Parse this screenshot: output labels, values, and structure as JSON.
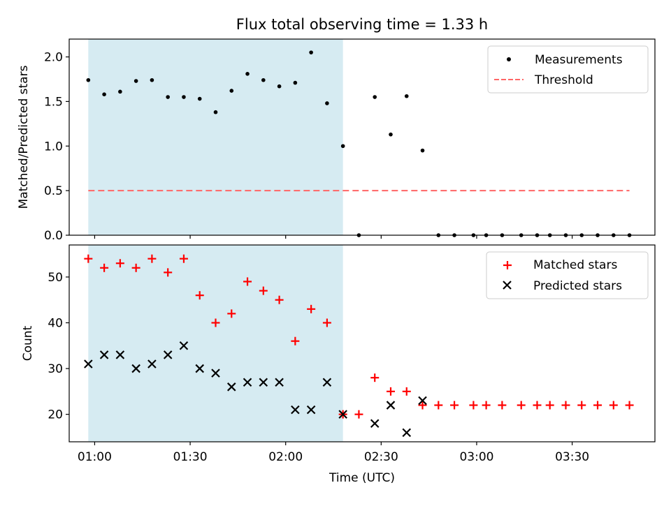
{
  "chart_data": [
    {
      "type": "scatter",
      "title": "Flux total observing time = 1.33 h",
      "ylabel": "Matched/Predicted stars",
      "xlabel": "",
      "xlim": [
        "00:52",
        "03:56"
      ],
      "ylim": [
        0,
        2.2
      ],
      "yticks": [
        "0.0",
        "0.5",
        "1.0",
        "1.5",
        "2.0"
      ],
      "shaded_interval": [
        "00:58",
        "02:18"
      ],
      "shade_color": "#add8e6",
      "legend_position": "top-right",
      "series": [
        {
          "name": "Measurements",
          "marker": "dot",
          "color": "#000000",
          "x": [
            "00:58",
            "01:03",
            "01:08",
            "01:13",
            "01:18",
            "01:23",
            "01:28",
            "01:33",
            "01:38",
            "01:43",
            "01:48",
            "01:53",
            "01:58",
            "02:03",
            "02:08",
            "02:13",
            "02:18",
            "02:23",
            "02:28",
            "02:33",
            "02:38",
            "02:43",
            "02:48",
            "02:53",
            "02:59",
            "03:03",
            "03:08",
            "03:14",
            "03:19",
            "03:23",
            "03:28",
            "03:33",
            "03:38",
            "03:43",
            "03:48"
          ],
          "y": [
            1.74,
            1.58,
            1.61,
            1.73,
            1.74,
            1.55,
            1.55,
            1.53,
            1.38,
            1.62,
            1.81,
            1.74,
            1.67,
            1.71,
            2.05,
            1.48,
            1.0,
            0.0,
            1.55,
            1.13,
            1.56,
            0.95,
            0.0,
            0.0,
            0.0,
            0.0,
            0.0,
            0.0,
            0.0,
            0.0,
            0.0,
            0.0,
            0.0,
            0.0,
            0.0
          ]
        },
        {
          "name": "Threshold",
          "style": "dashed",
          "color": "#ff6666",
          "x": [
            "00:58",
            "03:48"
          ],
          "y": [
            0.5,
            0.5
          ]
        }
      ]
    },
    {
      "type": "scatter",
      "title": "",
      "ylabel": "Count",
      "xlabel": "Time (UTC)",
      "xlim": [
        "00:52",
        "03:56"
      ],
      "ylim": [
        14,
        57
      ],
      "yticks": [
        "20",
        "30",
        "40",
        "50"
      ],
      "xticks": [
        "01:00",
        "01:30",
        "02:00",
        "02:30",
        "03:00",
        "03:30"
      ],
      "shaded_interval": [
        "00:58",
        "02:18"
      ],
      "shade_color": "#add8e6",
      "legend_position": "top-right",
      "series": [
        {
          "name": "Matched stars",
          "marker": "plus",
          "color": "#ff0000",
          "x": [
            "00:58",
            "01:03",
            "01:08",
            "01:13",
            "01:18",
            "01:23",
            "01:28",
            "01:33",
            "01:38",
            "01:43",
            "01:48",
            "01:53",
            "01:58",
            "02:03",
            "02:08",
            "02:13",
            "02:18",
            "02:23",
            "02:28",
            "02:33",
            "02:38",
            "02:43",
            "02:48",
            "02:53",
            "02:59",
            "03:03",
            "03:08",
            "03:14",
            "03:19",
            "03:23",
            "03:28",
            "03:33",
            "03:38",
            "03:43",
            "03:48"
          ],
          "y": [
            54,
            52,
            53,
            52,
            54,
            51,
            54,
            46,
            40,
            42,
            49,
            47,
            45,
            36,
            43,
            40,
            20,
            20,
            28,
            25,
            25,
            22,
            22,
            22,
            22,
            22,
            22,
            22,
            22,
            22,
            22,
            22,
            22,
            22,
            22
          ]
        },
        {
          "name": "Predicted stars",
          "marker": "x",
          "color": "#000000",
          "x": [
            "00:58",
            "01:03",
            "01:08",
            "01:13",
            "01:18",
            "01:23",
            "01:28",
            "01:33",
            "01:38",
            "01:43",
            "01:48",
            "01:53",
            "01:58",
            "02:03",
            "02:08",
            "02:13",
            "02:18",
            "02:28",
            "02:33",
            "02:38",
            "02:43"
          ],
          "y": [
            31,
            33,
            33,
            30,
            31,
            33,
            35,
            30,
            29,
            26,
            27,
            27,
            27,
            21,
            21,
            27,
            20,
            18,
            22,
            16,
            23
          ]
        }
      ]
    }
  ]
}
